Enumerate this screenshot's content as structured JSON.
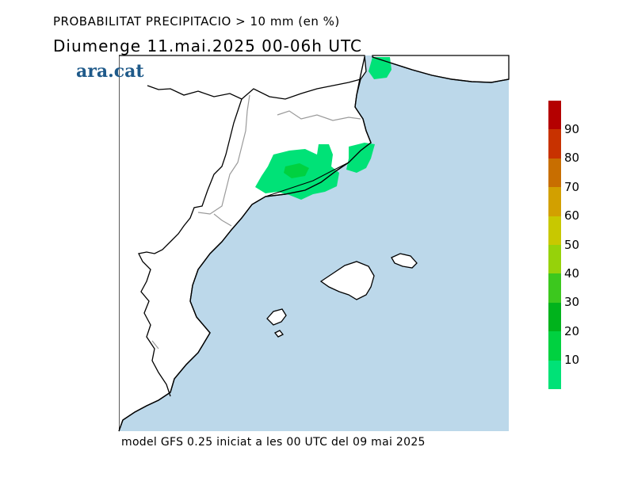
{
  "header": {
    "title": "PROBABILITAT PRECIPITACIO > 10 mm (en %)",
    "subtitle": "Diumenge  11.mai.2025 00-06h UTC",
    "logo_text": "ara.cat"
  },
  "footer": {
    "text": "model GFS 0.25 iniciat a les 00 UTC del 09 mai 2025"
  },
  "legend": {
    "labels": [
      "10",
      "20",
      "30",
      "40",
      "50",
      "60",
      "70",
      "80",
      "90"
    ],
    "colors": [
      "#00e277",
      "#00d140",
      "#00b31c",
      "#3cc81e",
      "#96d20a",
      "#c8c800",
      "#d2a000",
      "#c86e00",
      "#c83200",
      "#b40000"
    ]
  },
  "map": {
    "sea_color": "#bcd8ea",
    "land_color": "#ffffff",
    "precip_colors": [
      "#00e277",
      "#00d140"
    ]
  }
}
